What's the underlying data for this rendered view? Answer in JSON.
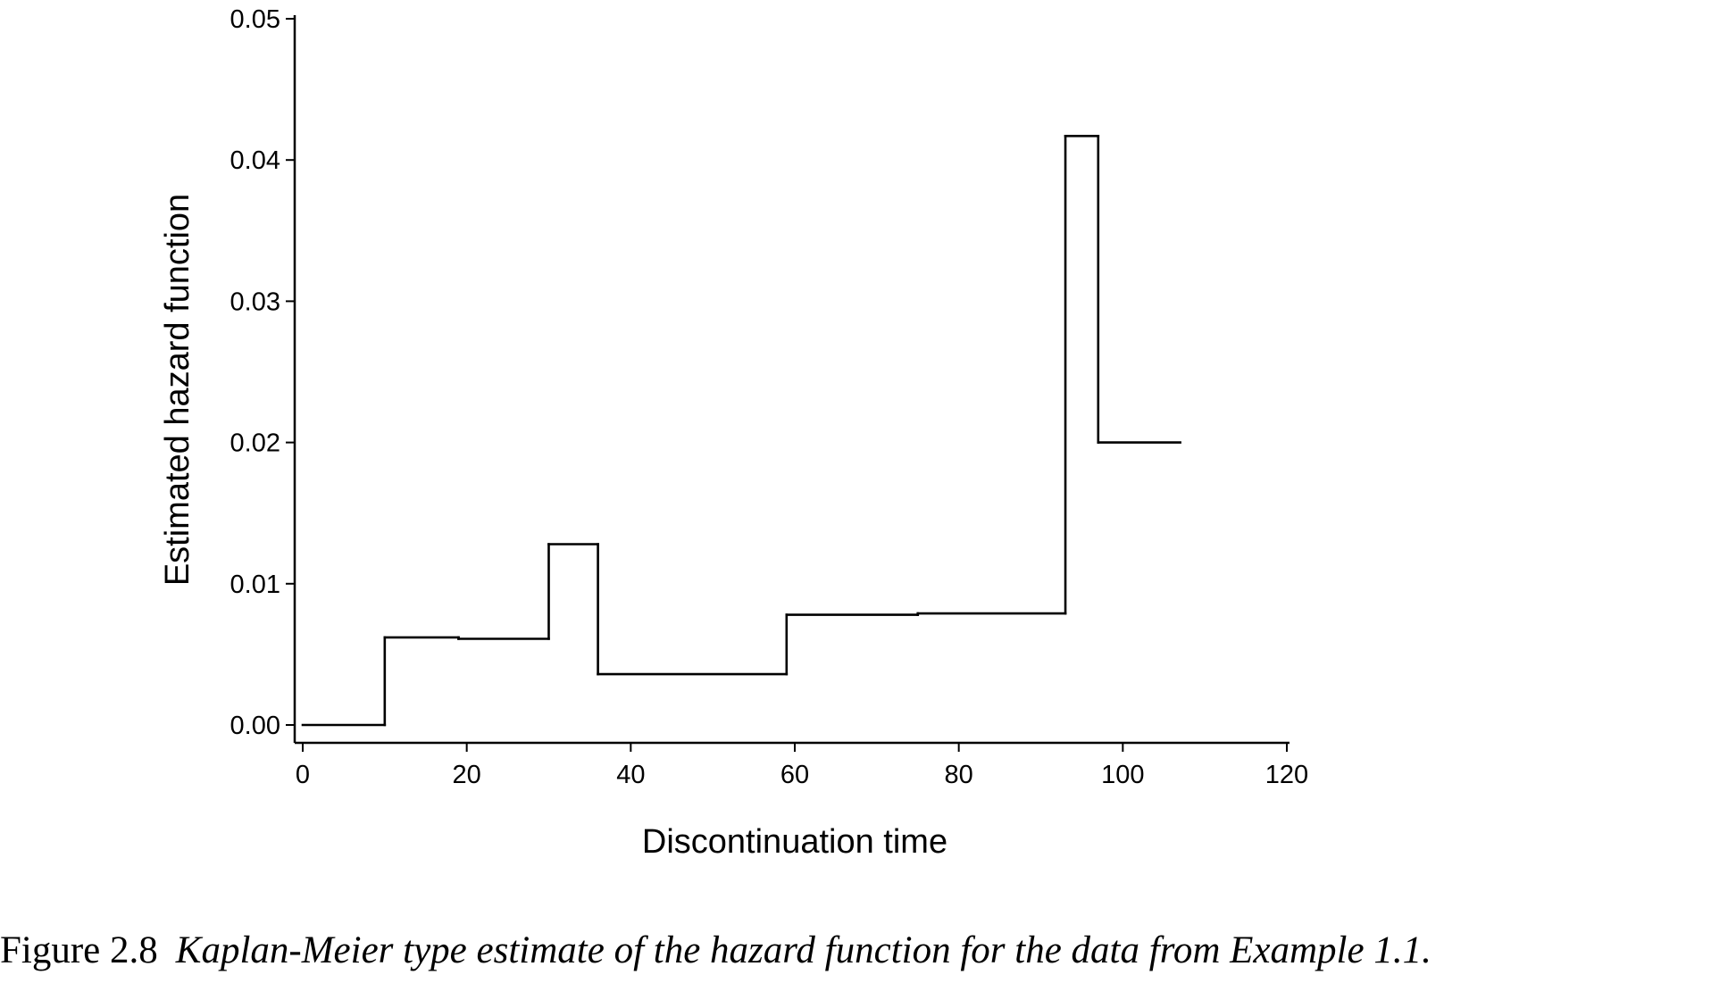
{
  "caption": {
    "label": "Figure 2.8",
    "text": "Kaplan-Meier type estimate of the hazard function for the data from Example 1.1."
  },
  "chart_data": {
    "type": "line",
    "step": true,
    "xlabel": "Discontinuation time",
    "ylabel": "Estimated hazard function",
    "xlim": [
      0,
      120
    ],
    "ylim": [
      0,
      0.05
    ],
    "xticks": [
      0,
      20,
      40,
      60,
      80,
      100,
      120
    ],
    "yticks": [
      "0.00",
      "0.01",
      "0.02",
      "0.03",
      "0.04",
      "0.05"
    ],
    "grid": false,
    "line_color": "#000000",
    "intervals": [
      {
        "start": 0,
        "end": 10,
        "hazard": 0.0
      },
      {
        "start": 10,
        "end": 19,
        "hazard": 0.0062
      },
      {
        "start": 19,
        "end": 30,
        "hazard": 0.0061
      },
      {
        "start": 30,
        "end": 36,
        "hazard": 0.0128
      },
      {
        "start": 36,
        "end": 59,
        "hazard": 0.0036
      },
      {
        "start": 59,
        "end": 75,
        "hazard": 0.0078
      },
      {
        "start": 75,
        "end": 93,
        "hazard": 0.0079
      },
      {
        "start": 93,
        "end": 97,
        "hazard": 0.0417
      },
      {
        "start": 97,
        "end": 107,
        "hazard": 0.02
      }
    ]
  }
}
